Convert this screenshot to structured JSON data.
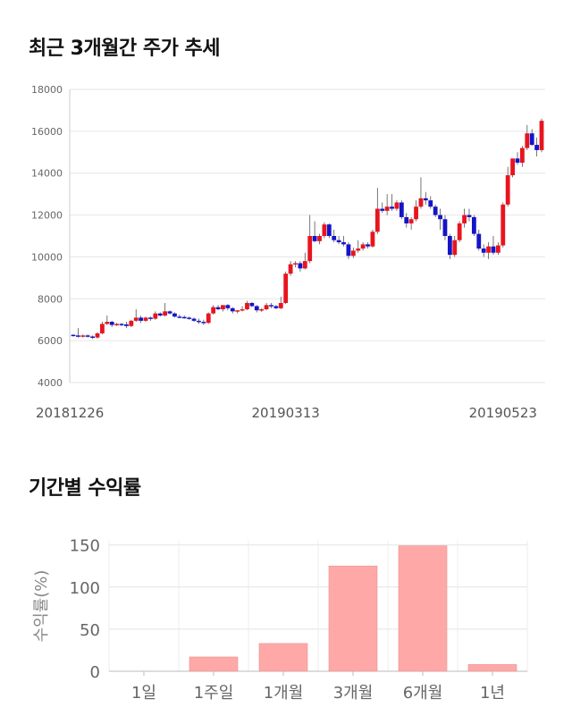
{
  "sections": {
    "price_title": "최근 3개월간 주가 추세",
    "return_title": "기간별 수익률"
  },
  "colors": {
    "up": "#e8141e",
    "down": "#1414c8",
    "bar": "#ffa8a8",
    "grid": "#e6e6e6"
  },
  "chart_data": [
    {
      "type": "candlestick",
      "ylim": [
        4000,
        18000
      ],
      "yticks": [
        4000,
        6000,
        8000,
        10000,
        12000,
        14000,
        16000,
        18000
      ],
      "xtick_labels": [
        {
          "index": 0,
          "label": "20181226"
        },
        {
          "index": 44,
          "label": "20190313"
        },
        {
          "index": 89,
          "label": "20190523"
        }
      ],
      "grid": true,
      "candles": [
        [
          6280,
          6300,
          6200,
          6250
        ],
        [
          6250,
          6600,
          6150,
          6220
        ],
        [
          6220,
          6300,
          6150,
          6250
        ],
        [
          6250,
          6300,
          6150,
          6200
        ],
        [
          6200,
          6250,
          6080,
          6150
        ],
        [
          6150,
          6400,
          6100,
          6350
        ],
        [
          6350,
          6900,
          6300,
          6800
        ],
        [
          6800,
          7200,
          6750,
          6900
        ],
        [
          6900,
          6950,
          6650,
          6750
        ],
        [
          6750,
          6850,
          6700,
          6800
        ],
        [
          6800,
          6850,
          6700,
          6780
        ],
        [
          6780,
          6900,
          6600,
          6700
        ],
        [
          6700,
          7000,
          6650,
          6950
        ],
        [
          6950,
          7500,
          6900,
          7100
        ],
        [
          7100,
          7200,
          6850,
          6950
        ],
        [
          6950,
          7150,
          6900,
          7100
        ],
        [
          7100,
          7150,
          6950,
          7050
        ],
        [
          7050,
          7400,
          7000,
          7300
        ],
        [
          7300,
          7350,
          7150,
          7200
        ],
        [
          7200,
          7800,
          7150,
          7400
        ],
        [
          7400,
          7450,
          7250,
          7300
        ],
        [
          7300,
          7350,
          7100,
          7150
        ],
        [
          7150,
          7250,
          7080,
          7130
        ],
        [
          7130,
          7200,
          7050,
          7100
        ],
        [
          7100,
          7150,
          7000,
          7050
        ],
        [
          7050,
          7100,
          6900,
          6950
        ],
        [
          6950,
          7050,
          6800,
          6900
        ],
        [
          6900,
          7000,
          6750,
          6850
        ],
        [
          6850,
          7350,
          6800,
          7300
        ],
        [
          7300,
          7700,
          7250,
          7600
        ],
        [
          7600,
          7700,
          7450,
          7500
        ],
        [
          7500,
          7600,
          7400,
          7700
        ],
        [
          7700,
          7750,
          7450,
          7550
        ],
        [
          7550,
          7600,
          7300,
          7400
        ],
        [
          7400,
          7450,
          7300,
          7450
        ],
        [
          7450,
          7650,
          7400,
          7500
        ],
        [
          7500,
          7900,
          7450,
          7800
        ],
        [
          7800,
          7850,
          7600,
          7650
        ],
        [
          7650,
          7700,
          7350,
          7450
        ],
        [
          7450,
          7550,
          7380,
          7500
        ],
        [
          7500,
          7800,
          7450,
          7700
        ],
        [
          7700,
          7800,
          7550,
          7650
        ],
        [
          7650,
          7700,
          7500,
          7550
        ],
        [
          7550,
          8100,
          7500,
          7800
        ],
        [
          7800,
          9300,
          7750,
          9200
        ],
        [
          9200,
          9800,
          9100,
          9650
        ],
        [
          9650,
          9800,
          9500,
          9700
        ],
        [
          9700,
          9800,
          9300,
          9450
        ],
        [
          9450,
          10200,
          9400,
          9800
        ],
        [
          9800,
          12000,
          9700,
          11000
        ],
        [
          11000,
          11700,
          10700,
          10750
        ],
        [
          10750,
          11100,
          10600,
          11000
        ],
        [
          11000,
          11650,
          10900,
          11550
        ],
        [
          11550,
          11600,
          10900,
          11000
        ],
        [
          11000,
          11300,
          10700,
          10800
        ],
        [
          10800,
          11000,
          10600,
          10700
        ],
        [
          10700,
          11000,
          10500,
          10600
        ],
        [
          10600,
          10700,
          9900,
          10050
        ],
        [
          10050,
          10450,
          9950,
          10300
        ],
        [
          10300,
          10800,
          10200,
          10400
        ],
        [
          10400,
          10700,
          10300,
          10600
        ],
        [
          10600,
          10700,
          10400,
          10500
        ],
        [
          10500,
          11300,
          10450,
          11200
        ],
        [
          11200,
          13300,
          11100,
          12300
        ],
        [
          12300,
          12600,
          12100,
          12200
        ],
        [
          12200,
          13000,
          12000,
          12400
        ],
        [
          12400,
          13000,
          12200,
          12300
        ],
        [
          12300,
          12700,
          12200,
          12600
        ],
        [
          12600,
          12700,
          11800,
          11900
        ],
        [
          11900,
          12100,
          11400,
          11600
        ],
        [
          11600,
          11900,
          11300,
          11800
        ],
        [
          11800,
          12700,
          11700,
          12400
        ],
        [
          12400,
          13800,
          12300,
          12800
        ],
        [
          12800,
          13100,
          12500,
          12700
        ],
        [
          12700,
          12900,
          12300,
          12400
        ],
        [
          12400,
          12500,
          11900,
          12000
        ],
        [
          12000,
          12300,
          11300,
          11800
        ],
        [
          11800,
          12000,
          10800,
          11000
        ],
        [
          11000,
          11100,
          9900,
          10100
        ],
        [
          10100,
          11000,
          10000,
          10800
        ],
        [
          10800,
          11700,
          10700,
          11600
        ],
        [
          11600,
          12300,
          11400,
          12000
        ],
        [
          12000,
          12300,
          11700,
          11900
        ],
        [
          11900,
          12000,
          11000,
          11100
        ],
        [
          11100,
          11300,
          10300,
          10400
        ],
        [
          10400,
          10600,
          10000,
          10200
        ],
        [
          10200,
          10700,
          9900,
          10500
        ],
        [
          10500,
          11000,
          10100,
          10200
        ],
        [
          10200,
          10700,
          10100,
          10550
        ],
        [
          10550,
          12600,
          10450,
          12500
        ],
        [
          12500,
          14300,
          12400,
          13900
        ],
        [
          13900,
          14700,
          13800,
          14700
        ],
        [
          14700,
          15000,
          14400,
          14500
        ],
        [
          14500,
          15300,
          14300,
          15200
        ],
        [
          15200,
          16300,
          15100,
          15900
        ],
        [
          15900,
          16100,
          15300,
          15350
        ],
        [
          15350,
          15700,
          14800,
          15100
        ],
        [
          15100,
          16600,
          15000,
          16500
        ]
      ]
    },
    {
      "type": "bar",
      "categories": [
        "1일",
        "1주일",
        "1개월",
        "3개월",
        "6개월",
        "1년"
      ],
      "values": [
        0,
        17,
        33,
        125,
        149,
        8
      ],
      "ylabel": "수익률(%)",
      "ylim": [
        0,
        155
      ],
      "yticks": [
        0,
        50,
        100,
        150
      ],
      "grid": true
    }
  ]
}
